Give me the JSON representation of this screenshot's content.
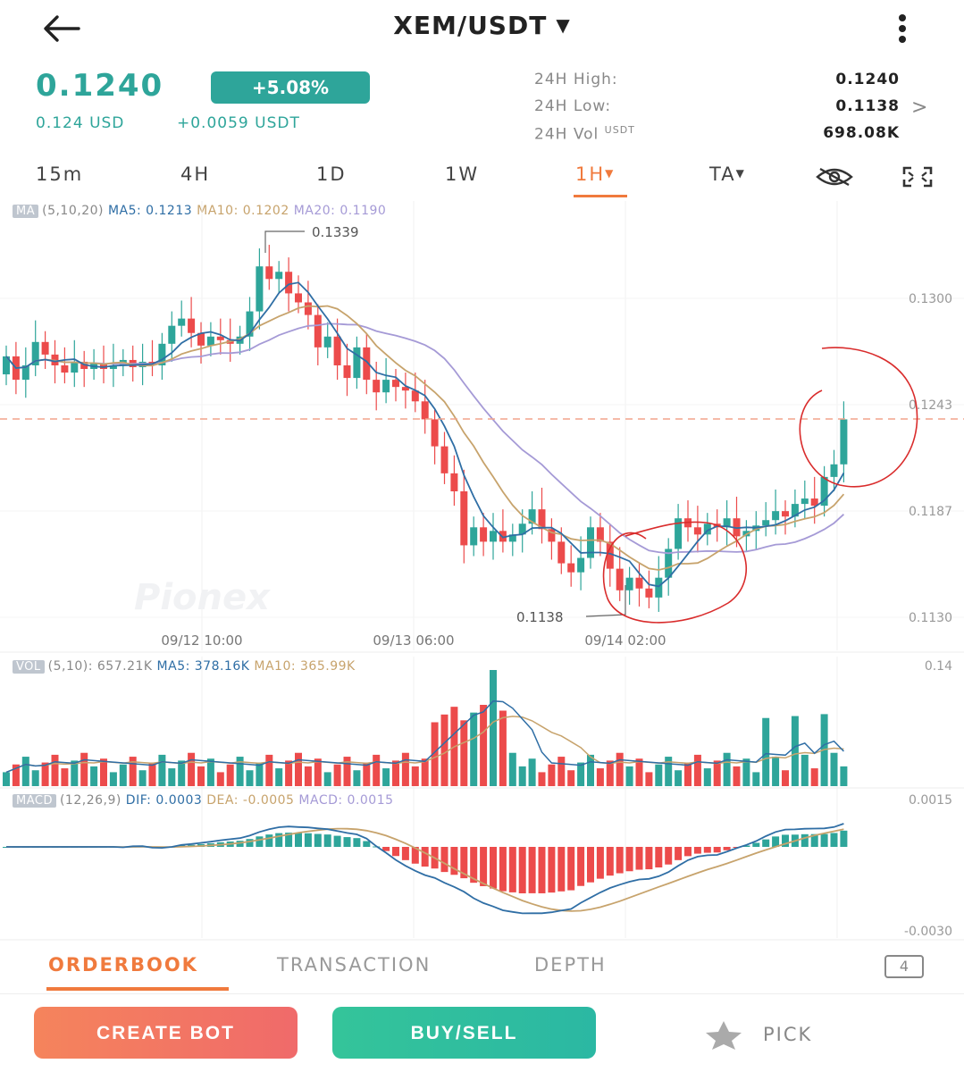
{
  "header": {
    "title": "XEM/USDT",
    "back_icon": "arrow-left-icon",
    "menu_icon": "vertical-dots-icon"
  },
  "price": {
    "last": "0.1240",
    "change_pct": "+5.08%",
    "usd": "0.124 USD",
    "change_abs": "+0.0059 USDT"
  },
  "stats": {
    "high_label": "24H High:",
    "high_value": "0.1240",
    "low_label": "24H Low:",
    "low_value": "0.1138",
    "vol_label": "24H Vol",
    "vol_unit": "USDT",
    "vol_value": "698.08K"
  },
  "timeframes": [
    "15m",
    "4H",
    "1D",
    "1W",
    "1H",
    "TA"
  ],
  "active_timeframe": "1H",
  "legend": {
    "ma_tag": "MA",
    "ma_params": "(5,10,20)",
    "ma5": "MA5: 0.1213",
    "ma10": "MA10: 0.1202",
    "ma20": "MA20: 0.1190",
    "vol_tag": "VOL",
    "vol_params": "(5,10): 657.21K",
    "vol_ma5": "MA5: 378.16K",
    "vol_ma10": "MA10: 365.99K",
    "macd_tag": "MACD",
    "macd_params": "(12,26,9)",
    "dif": "DIF: 0.0003",
    "dea": "DEA: -0.0005",
    "macd": "MACD: 0.0015"
  },
  "chart_labels": {
    "price_ticks": [
      "0.1300",
      "0.1243",
      "0.1187",
      "0.1130"
    ],
    "vol_tick": "0.14",
    "macd_ticks": [
      "0.0015",
      "-0.0030"
    ],
    "time_ticks": [
      "09/12 10:00",
      "09/13 06:00",
      "09/14 02:00"
    ],
    "max_marker": "0.1339",
    "min_marker": "0.1138",
    "watermark": "Pionex"
  },
  "colors": {
    "up": "#2ea59a",
    "down": "#ec4b4b",
    "ma5": "#2f6ea5",
    "ma10": "#c7a36c",
    "ma20": "#a59ad6",
    "accent": "#f07a3d",
    "annotation": "#d92c2c"
  },
  "bottom_tabs": {
    "orderbook": "ORDERBOOK",
    "transaction": "TRANSACTION",
    "depth": "DEPTH",
    "count": "4"
  },
  "actions": {
    "create_bot": "CREATE BOT",
    "buy_sell": "BUY/SELL",
    "pick": "PICK",
    "pick_icon": "star-icon"
  }
}
